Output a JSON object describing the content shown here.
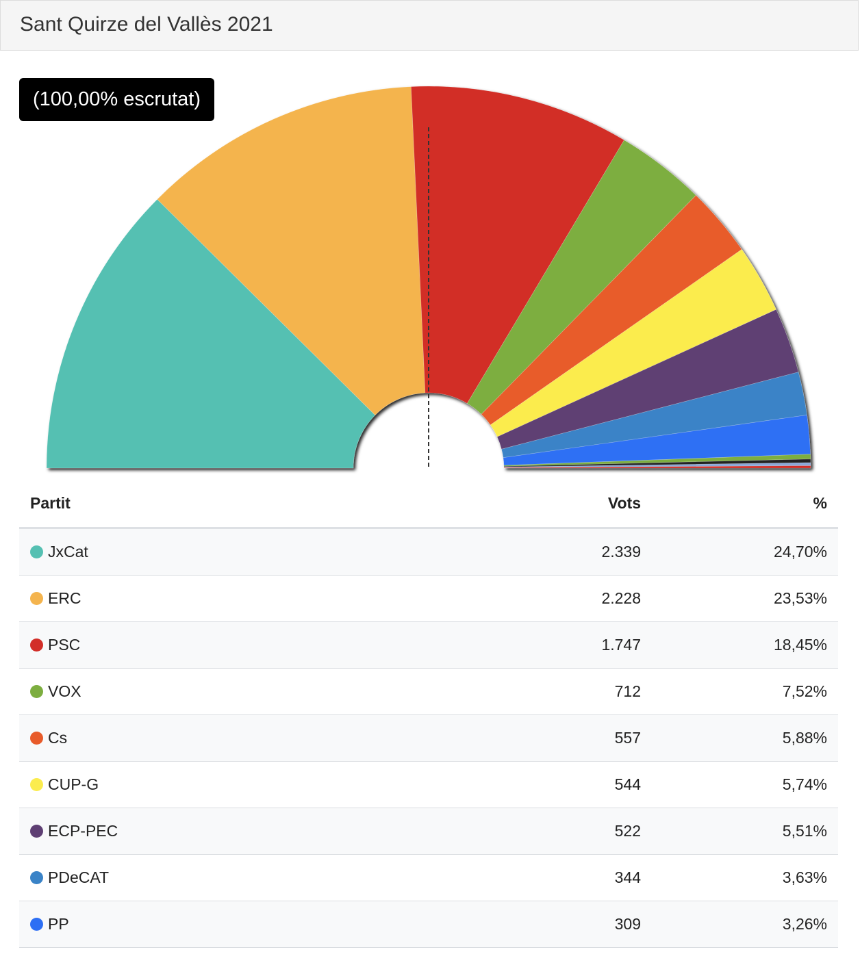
{
  "header": {
    "title": "Sant Quirze del Vallès 2021"
  },
  "badge": {
    "text": "(100,00% escrutat)"
  },
  "table": {
    "headers": {
      "party": "Partit",
      "votes": "Vots",
      "pct": "%"
    },
    "rows": [
      {
        "party": "JxCat",
        "votes": "2.339",
        "pct": "24,70%",
        "color": "#55c0b2"
      },
      {
        "party": "ERC",
        "votes": "2.228",
        "pct": "23,53%",
        "color": "#f4b44e"
      },
      {
        "party": "PSC",
        "votes": "1.747",
        "pct": "18,45%",
        "color": "#d22e28"
      },
      {
        "party": "VOX",
        "votes": "712",
        "pct": "7,52%",
        "color": "#7dae40"
      },
      {
        "party": "Cs",
        "votes": "557",
        "pct": "5,88%",
        "color": "#e85b2a"
      },
      {
        "party": "CUP-G",
        "votes": "544",
        "pct": "5,74%",
        "color": "#fbec4e"
      },
      {
        "party": "ECP-PEC",
        "votes": "522",
        "pct": "5,51%",
        "color": "#5e3f73"
      },
      {
        "party": "PDeCAT",
        "votes": "344",
        "pct": "3,63%",
        "color": "#3a83c7"
      },
      {
        "party": "PP",
        "votes": "309",
        "pct": "3,26%",
        "color": "#2d6ff4"
      }
    ]
  },
  "chart_data": {
    "type": "pie",
    "variant": "semicircle-donut",
    "majority_line": true,
    "series": [
      {
        "name": "JxCat",
        "value": 24.7,
        "color": "#55c0b2"
      },
      {
        "name": "ERC",
        "value": 23.53,
        "color": "#f4b44e"
      },
      {
        "name": "PSC",
        "value": 18.45,
        "color": "#d22e28"
      },
      {
        "name": "VOX",
        "value": 7.52,
        "color": "#7dae40"
      },
      {
        "name": "Cs",
        "value": 5.88,
        "color": "#e85b2a"
      },
      {
        "name": "CUP-G",
        "value": 5.74,
        "color": "#fbec4e"
      },
      {
        "name": "ECP-PEC",
        "value": 5.51,
        "color": "#5e3f73"
      },
      {
        "name": "PDeCAT",
        "value": 3.63,
        "color": "#3a83c7"
      },
      {
        "name": "PP",
        "value": 3.26,
        "color": "#2d6ff4"
      },
      {
        "name": "",
        "value": 0.4,
        "color": "#7dae40"
      },
      {
        "name": "",
        "value": 0.3,
        "color": "#222222"
      },
      {
        "name": "",
        "value": 0.25,
        "color": "#8aa8d8"
      },
      {
        "name": "",
        "value": 0.2,
        "color": "#d22e28"
      }
    ]
  }
}
